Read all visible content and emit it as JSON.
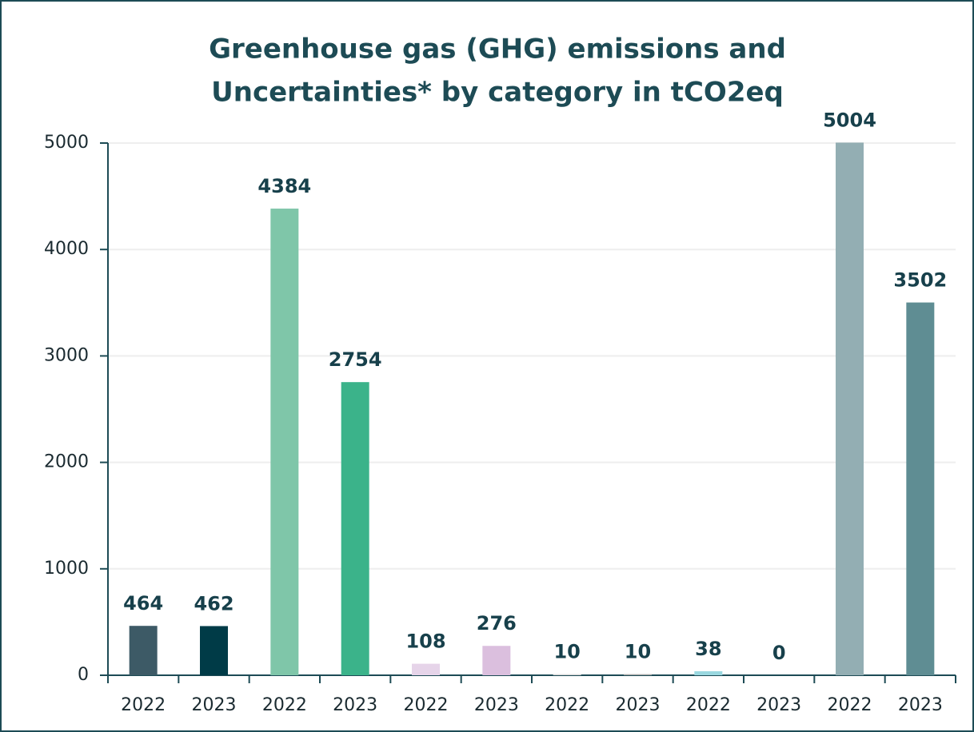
{
  "chart_data": {
    "type": "bar",
    "title": [
      "Greenhouse gas (GHG) emissions and",
      "Uncertainties* by category in tCO2eq"
    ],
    "categories": [
      "2022",
      "2023",
      "2022",
      "2023",
      "2022",
      "2023",
      "2022",
      "2023",
      "2022",
      "2023",
      "2022",
      "2023"
    ],
    "values": [
      464,
      462,
      4384,
      2754,
      108,
      276,
      10,
      10,
      38,
      0,
      5004,
      3502
    ],
    "colors": [
      "#3d5a66",
      "#003b47",
      "#7fc6a9",
      "#3bb38a",
      "#e6d4e9",
      "#dbbfde",
      "#d5d5d5",
      "#a5a5a5",
      "#9ad8e0",
      "#9ad8e0",
      "#93aeb3",
      "#5f8d93"
    ],
    "ylim": [
      0,
      5000
    ],
    "yticks": [
      0,
      1000,
      2000,
      3000,
      4000,
      5000
    ],
    "grid": true
  }
}
